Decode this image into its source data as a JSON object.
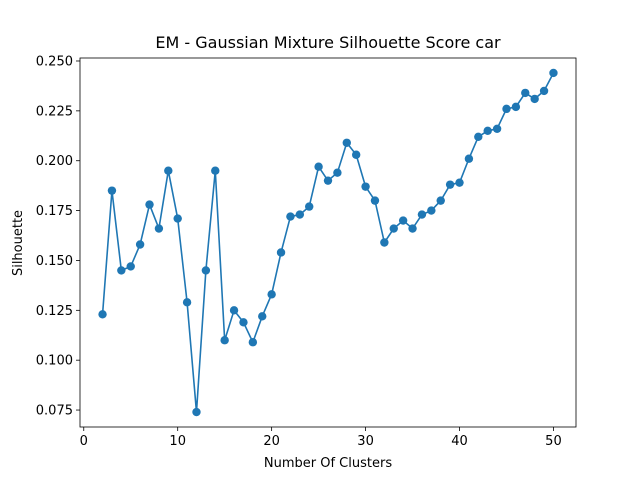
{
  "chart_data": {
    "type": "line",
    "title": "EM - Gaussian Mixture Silhouette Score car",
    "xlabel": "Number Of Clusters",
    "ylabel": "Silhouette",
    "xlim": [
      -0.4,
      52.4
    ],
    "ylim": [
      0.0665,
      0.2515
    ],
    "xticks": [
      0,
      10,
      20,
      30,
      40,
      50
    ],
    "yticks": [
      0.075,
      0.1,
      0.125,
      0.15,
      0.175,
      0.2,
      0.225,
      0.25
    ],
    "ytick_labels": [
      "0.075",
      "0.100",
      "0.125",
      "0.150",
      "0.175",
      "0.200",
      "0.225",
      "0.250"
    ],
    "grid": false,
    "color": "#1f77b4",
    "series": [
      {
        "x": [
          2,
          3,
          4,
          5,
          6,
          7,
          8,
          9,
          10,
          11,
          12,
          13,
          14,
          15,
          16,
          17,
          18,
          19,
          20,
          21,
          22,
          23,
          24,
          25,
          26,
          27,
          28,
          29,
          30,
          31,
          32,
          33,
          34,
          35,
          36,
          37,
          38,
          39,
          40,
          41,
          42,
          43,
          44,
          45,
          46,
          47,
          48,
          49,
          50
        ],
        "y": [
          0.123,
          0.185,
          0.145,
          0.147,
          0.158,
          0.178,
          0.166,
          0.195,
          0.171,
          0.129,
          0.074,
          0.145,
          0.195,
          0.11,
          0.125,
          0.119,
          0.109,
          0.122,
          0.133,
          0.154,
          0.172,
          0.173,
          0.177,
          0.197,
          0.19,
          0.194,
          0.209,
          0.203,
          0.187,
          0.18,
          0.159,
          0.166,
          0.17,
          0.166,
          0.173,
          0.175,
          0.18,
          0.188,
          0.189,
          0.201,
          0.212,
          0.215,
          0.216,
          0.226,
          0.227,
          0.234,
          0.231,
          0.235,
          0.244
        ]
      }
    ]
  }
}
